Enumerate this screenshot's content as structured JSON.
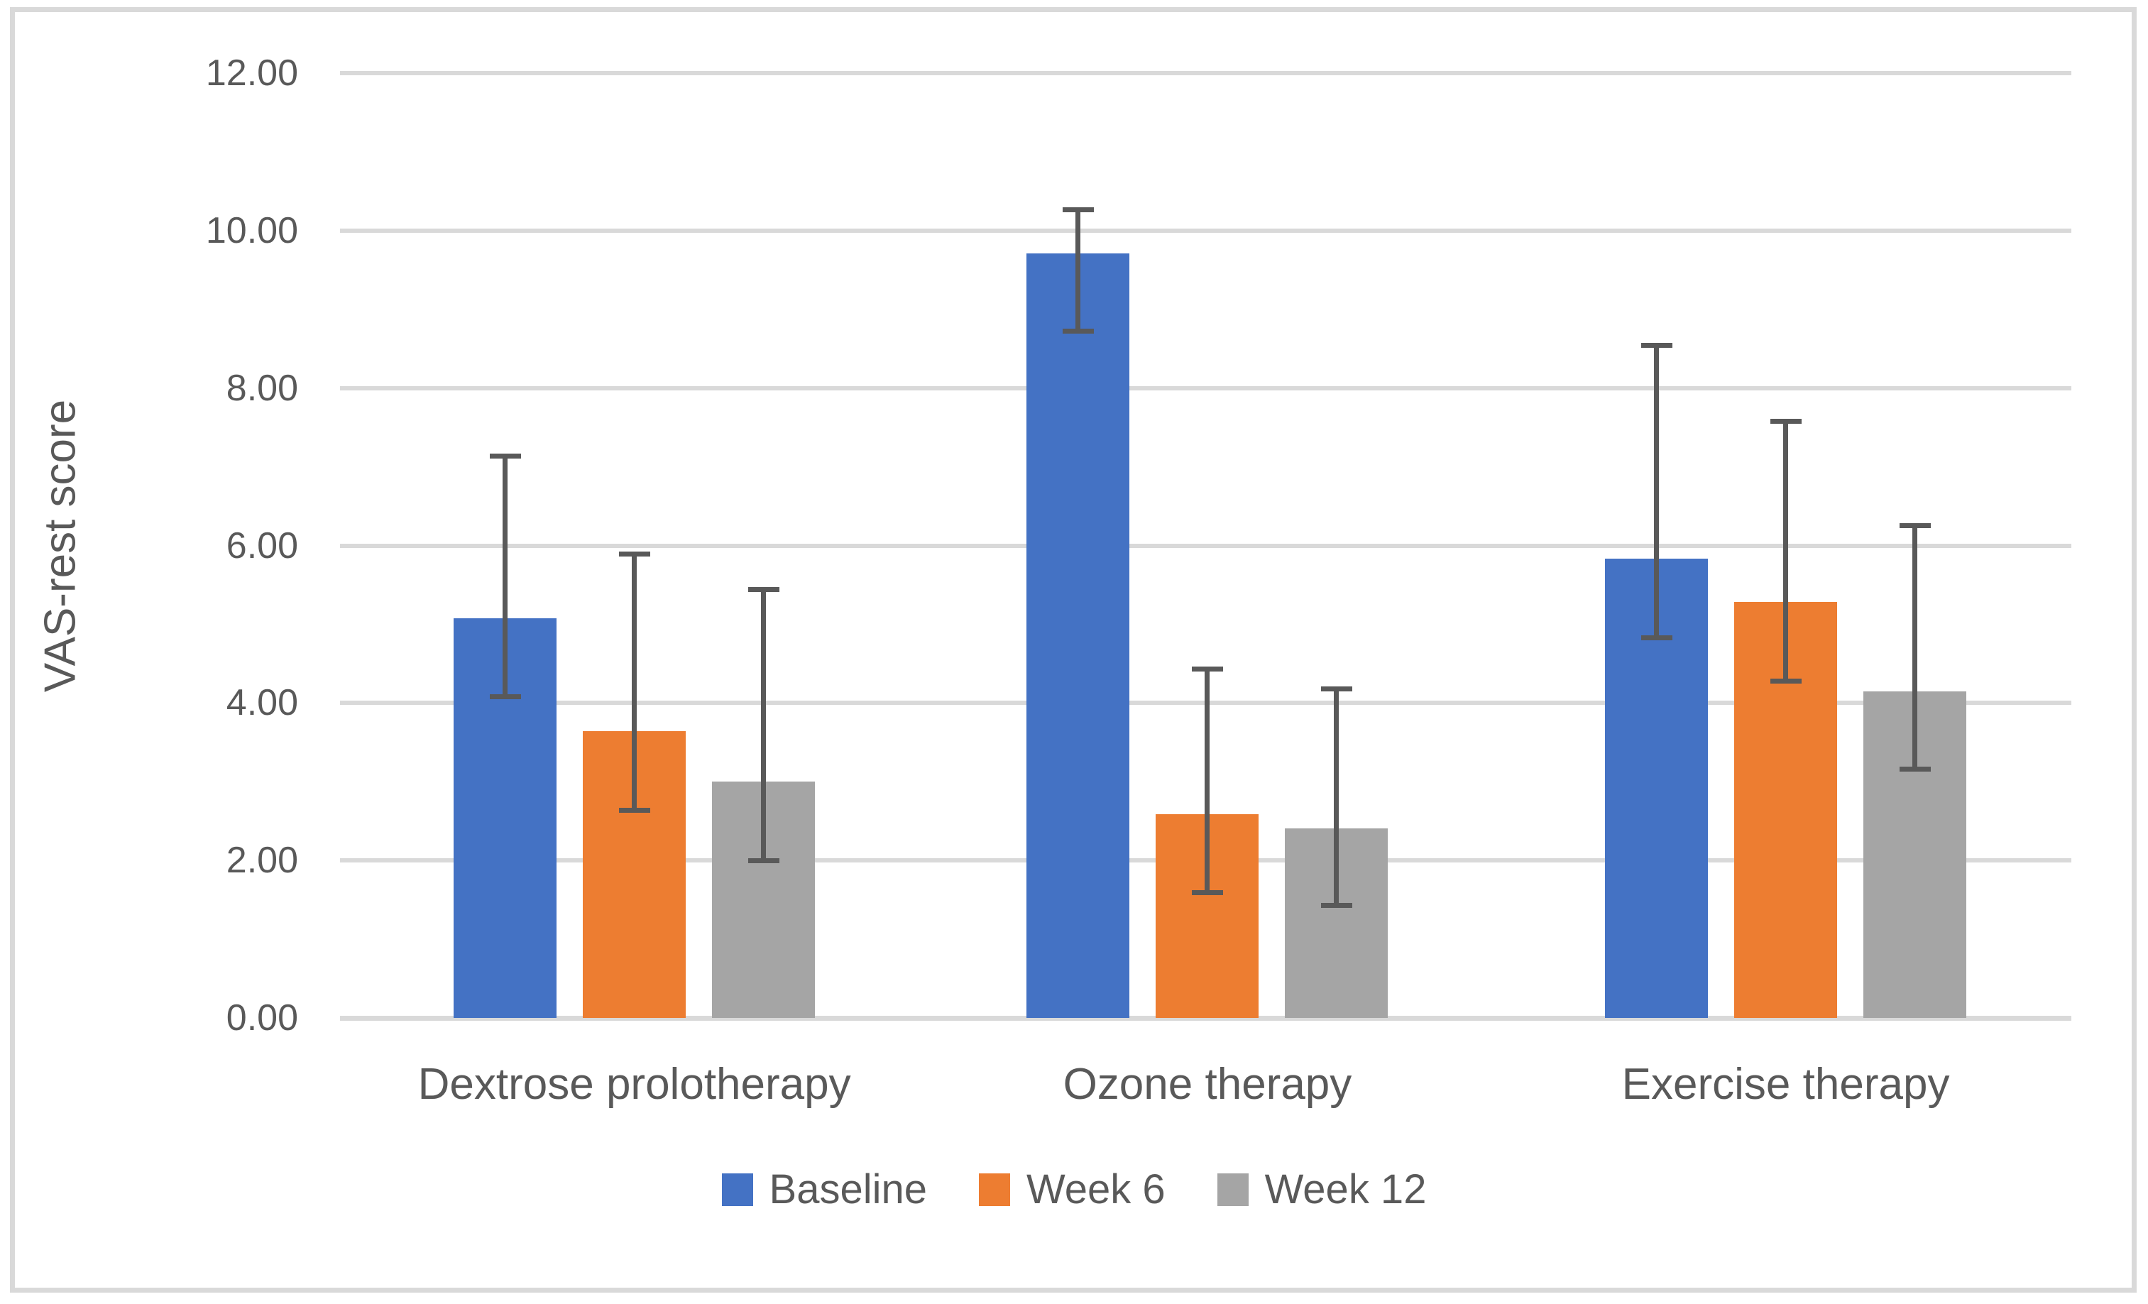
{
  "chart_data": {
    "type": "bar",
    "title": "",
    "xlabel": "",
    "ylabel": "VAS-rest score",
    "categories": [
      "Dextrose prolotherapy",
      "Ozone therapy",
      "Exercise therapy"
    ],
    "series": [
      {
        "name": "Baseline",
        "color": "#4472C4",
        "values": [
          5.08,
          9.71,
          5.83
        ],
        "error_low": [
          4.08,
          8.72,
          4.83
        ],
        "error_high": [
          7.14,
          10.26,
          8.54
        ]
      },
      {
        "name": "Week 6",
        "color": "#ED7D31",
        "values": [
          3.64,
          2.59,
          5.28
        ],
        "error_low": [
          2.64,
          1.59,
          4.28
        ],
        "error_high": [
          5.89,
          4.43,
          7.58
        ]
      },
      {
        "name": "Week 12",
        "color": "#A5A5A5",
        "values": [
          3.0,
          2.41,
          4.15
        ],
        "error_low": [
          2.0,
          1.43,
          3.16
        ],
        "error_high": [
          5.44,
          4.18,
          6.25
        ]
      }
    ],
    "ylim": [
      0,
      12
    ],
    "ytick_step": 2,
    "ytick_labels": [
      "0.00",
      "2.00",
      "4.00",
      "6.00",
      "8.00",
      "10.00",
      "12.00"
    ],
    "grid": true,
    "legend_position": "bottom",
    "error_bar_color": "#595959",
    "gridline_color": "#D9D9D9",
    "text_color": "#595959",
    "border_color": "#D9D9D9",
    "background_color": "#FFFFFF"
  }
}
